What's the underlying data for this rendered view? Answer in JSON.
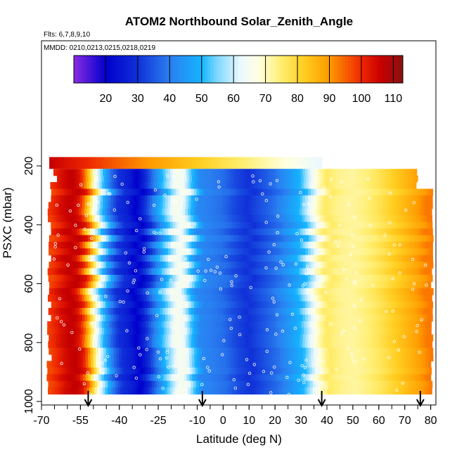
{
  "header": {
    "title": "ATOM2 Northbound Solar_Zenith_Angle",
    "flights": "Flts: 6,7,8,9,10",
    "dates": "MMDD: 0210,0213,0215,0218,0219"
  },
  "chart_data": {
    "type": "heatmap",
    "title": "ATOM2 Northbound Solar_Zenith_Angle",
    "xlabel": "Latitude (deg N)",
    "ylabel": "PSXC (mbar)",
    "xlim": [
      -70,
      82
    ],
    "ylim": [
      1020,
      0
    ],
    "y_reversed": true,
    "x_ticks": [
      -70,
      -55,
      -40,
      -25,
      -10,
      0,
      10,
      20,
      30,
      40,
      50,
      60,
      70,
      80
    ],
    "x_minor_step": 5,
    "y_ticks": [
      200,
      400,
      600,
      800,
      1000
    ],
    "grid": false,
    "colorbar": {
      "range": [
        10,
        113
      ],
      "ticks": [
        20,
        30,
        40,
        50,
        60,
        70,
        80,
        90,
        100,
        110
      ],
      "colormap": [
        {
          "v": 10,
          "color": "#8a2be2"
        },
        {
          "v": 20,
          "color": "#0000cc"
        },
        {
          "v": 30,
          "color": "#1030d8"
        },
        {
          "v": 40,
          "color": "#2a7ff0"
        },
        {
          "v": 50,
          "color": "#15b4ff"
        },
        {
          "v": 55,
          "color": "#80d8ff"
        },
        {
          "v": 62,
          "color": "#eaf8ff"
        },
        {
          "v": 68,
          "color": "#ffffe0"
        },
        {
          "v": 75,
          "color": "#ffee70"
        },
        {
          "v": 82,
          "color": "#ffce20"
        },
        {
          "v": 90,
          "color": "#ff9a00"
        },
        {
          "v": 100,
          "color": "#ee2800"
        },
        {
          "v": 106,
          "color": "#c80000"
        },
        {
          "v": 113,
          "color": "#8a1010"
        }
      ]
    },
    "sza_profile": [
      {
        "lat": -68,
        "sza": 97
      },
      {
        "lat": -65,
        "sza": 100
      },
      {
        "lat": -62,
        "sza": 104
      },
      {
        "lat": -58,
        "sza": 107
      },
      {
        "lat": -55,
        "sza": 103
      },
      {
        "lat": -53,
        "sza": 94
      },
      {
        "lat": -51,
        "sza": 80
      },
      {
        "lat": -49,
        "sza": 66
      },
      {
        "lat": -46,
        "sza": 52
      },
      {
        "lat": -43,
        "sza": 38
      },
      {
        "lat": -40,
        "sza": 30
      },
      {
        "lat": -36,
        "sza": 26
      },
      {
        "lat": -33,
        "sza": 20
      },
      {
        "lat": -30,
        "sza": 28
      },
      {
        "lat": -27,
        "sza": 38
      },
      {
        "lat": -24,
        "sza": 48
      },
      {
        "lat": -21,
        "sza": 57
      },
      {
        "lat": -18,
        "sza": 66
      },
      {
        "lat": -15,
        "sza": 64
      },
      {
        "lat": -12,
        "sza": 52
      },
      {
        "lat": -9,
        "sza": 42
      },
      {
        "lat": -5,
        "sza": 40
      },
      {
        "lat": 0,
        "sza": 38
      },
      {
        "lat": 5,
        "sza": 33
      },
      {
        "lat": 10,
        "sza": 30
      },
      {
        "lat": 15,
        "sza": 34
      },
      {
        "lat": 20,
        "sza": 38
      },
      {
        "lat": 25,
        "sza": 44
      },
      {
        "lat": 30,
        "sza": 50
      },
      {
        "lat": 34,
        "sza": 62
      },
      {
        "lat": 37,
        "sza": 70
      },
      {
        "lat": 40,
        "sza": 76
      },
      {
        "lat": 45,
        "sza": 73
      },
      {
        "lat": 50,
        "sza": 72
      },
      {
        "lat": 55,
        "sza": 74
      },
      {
        "lat": 60,
        "sza": 77
      },
      {
        "lat": 65,
        "sza": 81
      },
      {
        "lat": 70,
        "sza": 85
      },
      {
        "lat": 75,
        "sza": 89
      },
      {
        "lat": 79,
        "sza": 93
      }
    ],
    "top_band": {
      "pressure_range": [
        170,
        210
      ],
      "lat_range": [
        -67,
        38
      ],
      "sza_start": 106,
      "sza_end": 62
    },
    "profile_arrows_lat": [
      -52,
      -8,
      38,
      76
    ]
  }
}
